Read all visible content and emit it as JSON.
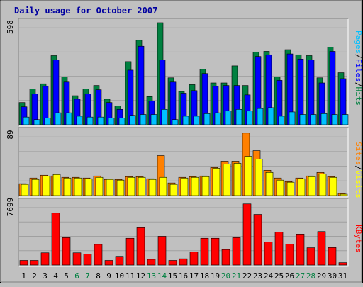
{
  "chart_data": [
    {
      "type": "bar",
      "title": "Daily usage for October 2007",
      "categories": [
        "1",
        "2",
        "3",
        "4",
        "5",
        "6",
        "7",
        "8",
        "9",
        "10",
        "11",
        "12",
        "13",
        "14",
        "15",
        "16",
        "17",
        "18",
        "19",
        "20",
        "21",
        "22",
        "23",
        "24",
        "25",
        "26",
        "27",
        "28",
        "29",
        "30",
        "31"
      ],
      "weekend_days": [
        "6",
        "7",
        "13",
        "14",
        "20",
        "21",
        "27",
        "28"
      ],
      "ymax_label": "598",
      "ylim": [
        0,
        598
      ],
      "axis_label_parts": [
        "Pages",
        "/",
        "Files",
        "/",
        "Hits"
      ],
      "series": [
        {
          "name": "Hits",
          "color": "#008040",
          "values": [
            130,
            210,
            240,
            405,
            280,
            170,
            210,
            230,
            150,
            110,
            370,
            495,
            165,
            598,
            275,
            195,
            235,
            325,
            245,
            245,
            345,
            230,
            425,
            430,
            280,
            440,
            410,
            405,
            275,
            455,
            305
          ]
        },
        {
          "name": "Files",
          "color": "#0000ff",
          "values": [
            105,
            180,
            225,
            380,
            250,
            150,
            180,
            205,
            130,
            90,
            320,
            460,
            140,
            380,
            250,
            185,
            200,
            300,
            225,
            230,
            230,
            175,
            400,
            410,
            260,
            415,
            385,
            380,
            245,
            430,
            270
          ]
        },
        {
          "name": "Pages",
          "color": "#00c0ff",
          "values": [
            45,
            30,
            40,
            70,
            70,
            50,
            45,
            45,
            40,
            40,
            55,
            60,
            60,
            90,
            30,
            50,
            50,
            65,
            70,
            80,
            90,
            80,
            95,
            100,
            50,
            75,
            60,
            60,
            65,
            60,
            60
          ]
        }
      ]
    },
    {
      "type": "bar",
      "ymax_label": "89",
      "ylim": [
        0,
        89
      ],
      "axis_label_parts": [
        "Sites",
        "/",
        "Visits"
      ],
      "series": [
        {
          "name": "Visits",
          "color": "#ff8000",
          "values": [
            17,
            25,
            29,
            28,
            26,
            26,
            25,
            28,
            23,
            23,
            27,
            27,
            24,
            57,
            18,
            26,
            27,
            28,
            40,
            49,
            49,
            89,
            64,
            36,
            25,
            20,
            25,
            28,
            33,
            27,
            3
          ]
        },
        {
          "name": "Sites",
          "color": "#ffff00",
          "values": [
            16,
            23,
            28,
            30,
            25,
            25,
            24,
            26,
            23,
            22,
            26,
            26,
            23,
            26,
            16,
            25,
            26,
            27,
            39,
            45,
            46,
            56,
            52,
            33,
            22,
            19,
            24,
            27,
            31,
            26,
            2
          ]
        }
      ]
    },
    {
      "type": "bar",
      "ymax_label": "7699",
      "ylim": [
        0,
        7699
      ],
      "axis_label_parts": [
        "KBytes"
      ],
      "series": [
        {
          "name": "KBytes",
          "color": "#ff0000",
          "values": [
            580,
            580,
            1540,
            6540,
            3450,
            1540,
            1380,
            2600,
            580,
            1100,
            3370,
            4700,
            720,
            3620,
            580,
            790,
            1650,
            3370,
            3370,
            1950,
            3450,
            7699,
            6380,
            2900,
            4140,
            2630,
            3900,
            2180,
            4220,
            2200,
            300
          ]
        }
      ]
    }
  ]
}
